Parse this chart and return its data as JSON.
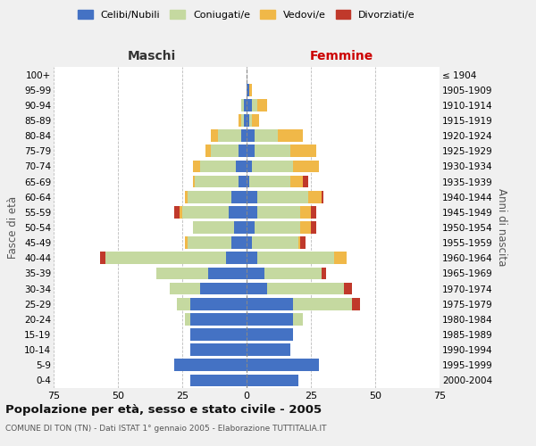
{
  "age_groups": [
    "0-4",
    "5-9",
    "10-14",
    "15-19",
    "20-24",
    "25-29",
    "30-34",
    "35-39",
    "40-44",
    "45-49",
    "50-54",
    "55-59",
    "60-64",
    "65-69",
    "70-74",
    "75-79",
    "80-84",
    "85-89",
    "90-94",
    "95-99",
    "100+"
  ],
  "birth_years": [
    "2000-2004",
    "1995-1999",
    "1990-1994",
    "1985-1989",
    "1980-1984",
    "1975-1979",
    "1970-1974",
    "1965-1969",
    "1960-1964",
    "1955-1959",
    "1950-1954",
    "1945-1949",
    "1940-1944",
    "1935-1939",
    "1930-1934",
    "1925-1929",
    "1920-1924",
    "1915-1919",
    "1910-1914",
    "1905-1909",
    "≤ 1904"
  ],
  "colors": {
    "celibi": "#4472C4",
    "coniugati": "#c5d9a0",
    "vedovi": "#f0b848",
    "divorziati": "#c0392b"
  },
  "males": {
    "celibi": [
      22,
      28,
      22,
      22,
      22,
      22,
      18,
      15,
      8,
      6,
      5,
      7,
      6,
      3,
      4,
      3,
      2,
      1,
      1,
      0,
      0
    ],
    "coniugati": [
      0,
      0,
      0,
      0,
      2,
      5,
      12,
      20,
      47,
      17,
      16,
      18,
      17,
      17,
      14,
      11,
      9,
      1,
      1,
      0,
      0
    ],
    "vedovi": [
      0,
      0,
      0,
      0,
      0,
      0,
      0,
      0,
      0,
      1,
      0,
      1,
      1,
      1,
      3,
      2,
      3,
      1,
      0,
      0,
      0
    ],
    "divorziati": [
      0,
      0,
      0,
      0,
      0,
      0,
      0,
      0,
      2,
      0,
      0,
      2,
      0,
      0,
      0,
      0,
      0,
      0,
      0,
      0,
      0
    ]
  },
  "females": {
    "celibi": [
      20,
      28,
      17,
      18,
      18,
      18,
      8,
      7,
      4,
      2,
      3,
      4,
      4,
      1,
      2,
      3,
      3,
      1,
      2,
      1,
      0
    ],
    "coniugati": [
      0,
      0,
      0,
      0,
      4,
      23,
      30,
      22,
      30,
      18,
      18,
      17,
      20,
      16,
      16,
      14,
      9,
      1,
      2,
      0,
      0
    ],
    "vedovi": [
      0,
      0,
      0,
      0,
      0,
      0,
      0,
      0,
      5,
      1,
      4,
      4,
      5,
      5,
      10,
      10,
      10,
      3,
      4,
      1,
      0
    ],
    "divorziati": [
      0,
      0,
      0,
      0,
      0,
      3,
      3,
      2,
      0,
      2,
      2,
      2,
      1,
      2,
      0,
      0,
      0,
      0,
      0,
      0,
      0
    ]
  },
  "xlim": 75,
  "title": "Popolazione per età, sesso e stato civile - 2005",
  "subtitle": "COMUNE DI TON (TN) - Dati ISTAT 1° gennaio 2005 - Elaborazione TUTTITALIA.IT",
  "xlabel_left": "Maschi",
  "xlabel_right": "Femmine",
  "ylabel_left": "Fasce di età",
  "ylabel_right": "Anni di nascita",
  "legend_labels": [
    "Celibi/Nubili",
    "Coniugati/e",
    "Vedovi/e",
    "Divorziati/e"
  ],
  "bg_color": "#f0f0f0",
  "plot_bg": "#ffffff",
  "maschi_color": "#333333",
  "femmine_color": "#cc0000"
}
